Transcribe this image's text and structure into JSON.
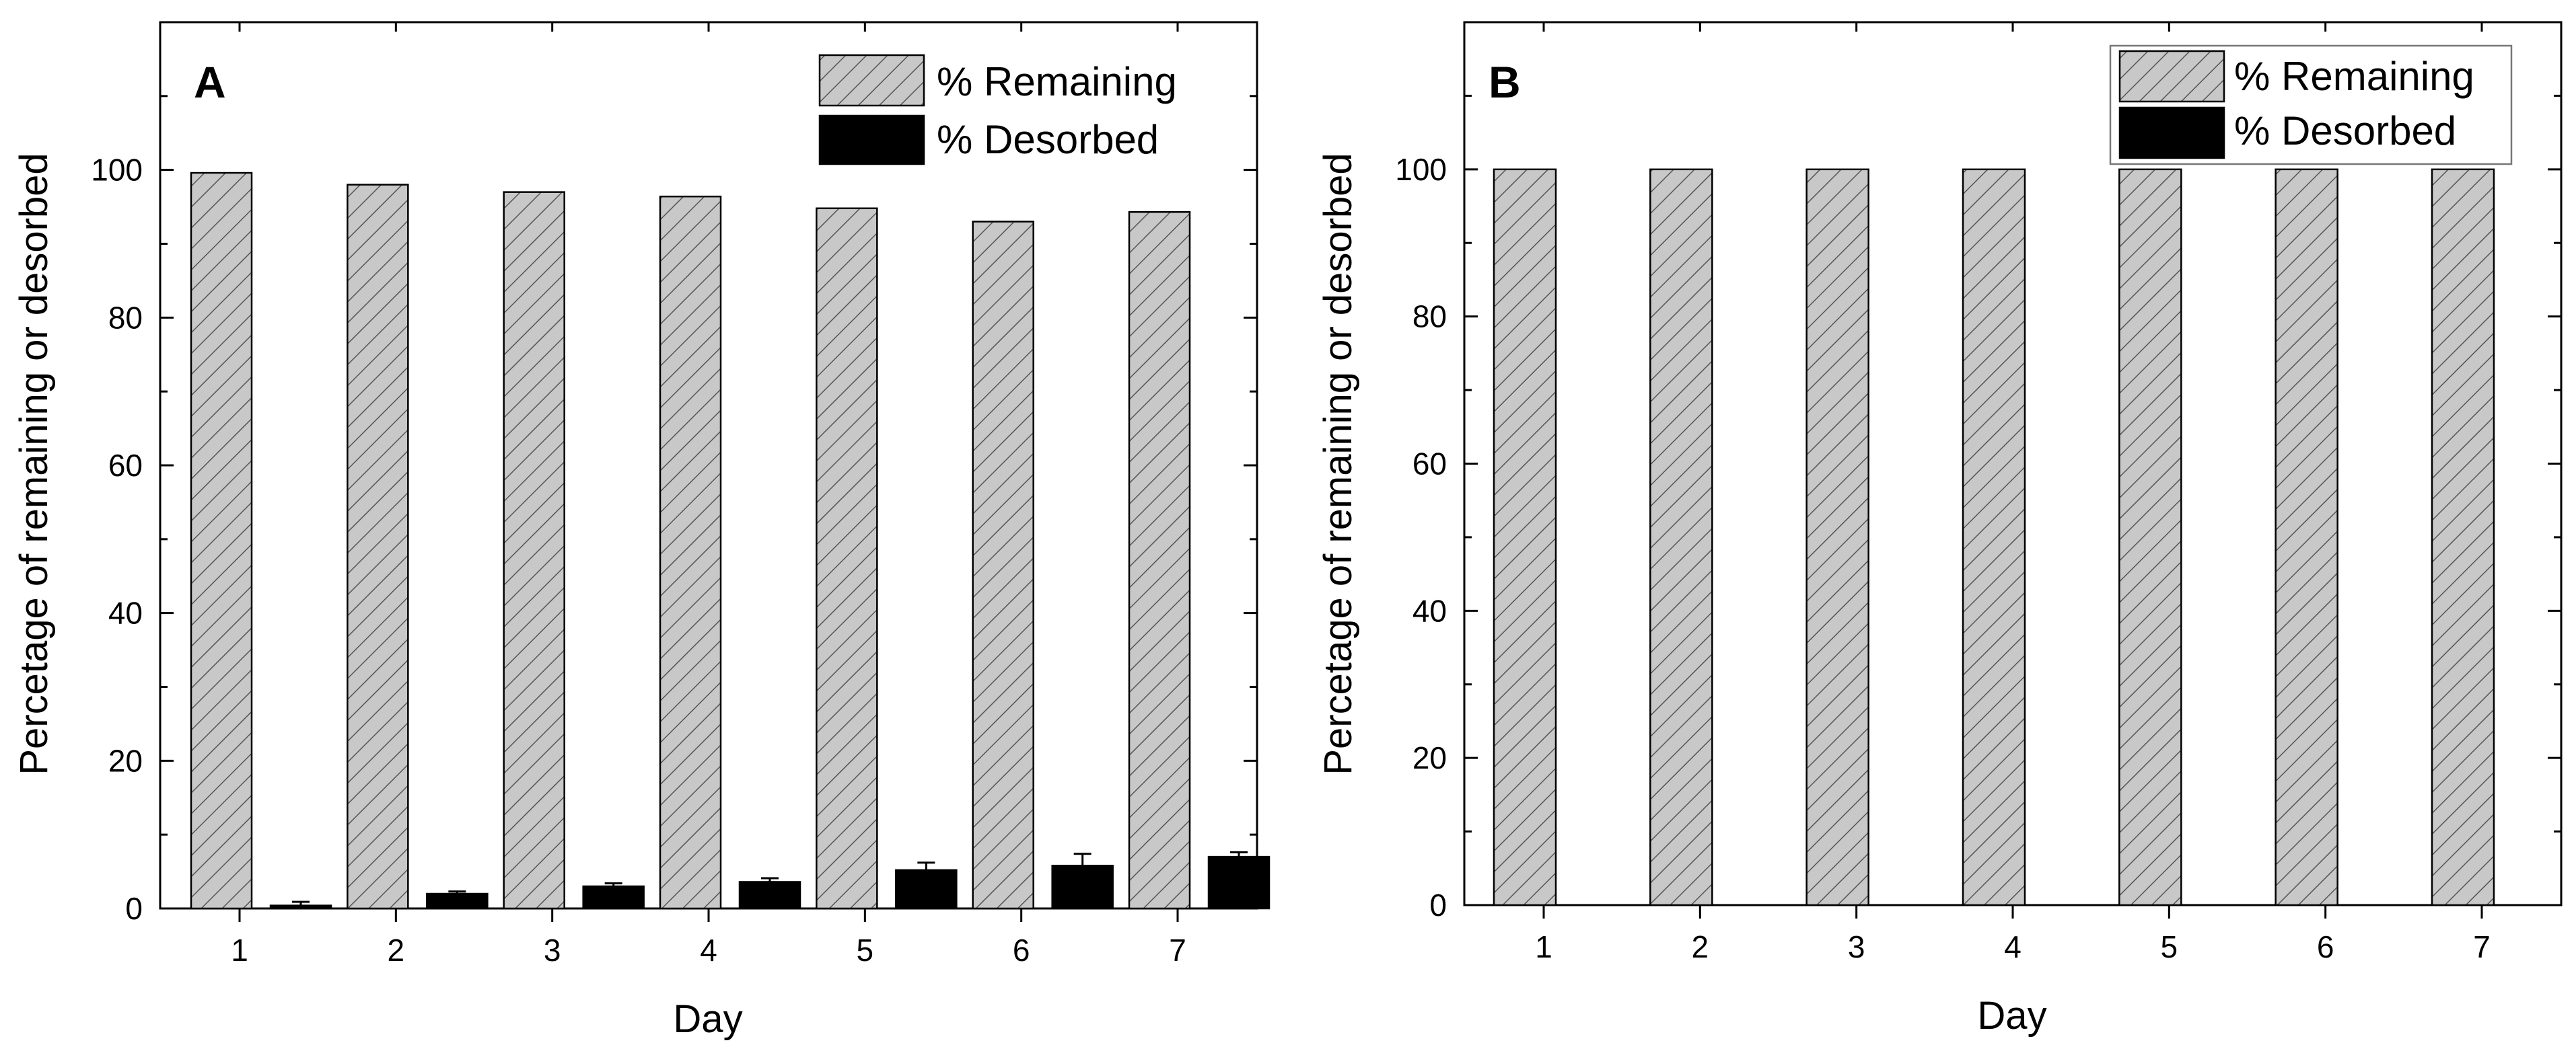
{
  "chart_data": [
    {
      "type": "bar",
      "panel_label": "A",
      "categories": [
        "1",
        "2",
        "3",
        "4",
        "5",
        "6",
        "7"
      ],
      "series": [
        {
          "name": "% Remaining",
          "values": [
            99.6,
            98.0,
            97.0,
            96.4,
            94.8,
            93.0,
            94.3
          ],
          "errors": [
            0,
            0,
            0,
            0,
            0,
            0,
            0
          ],
          "fill": "hatched-gray"
        },
        {
          "name": "% Desorbed",
          "values": [
            0.4,
            2.0,
            3.0,
            3.6,
            5.2,
            5.8,
            7.0
          ],
          "errors": [
            0.5,
            0.3,
            0.4,
            0.5,
            1.0,
            1.6,
            0.6
          ],
          "fill": "black"
        }
      ],
      "xlabel": "Day",
      "ylabel": "Percetage of remaining or desorbed",
      "ylim": [
        0,
        120
      ],
      "yticks": [
        "0",
        "20",
        "40",
        "60",
        "80",
        "100"
      ],
      "legend_position": "top-right"
    },
    {
      "type": "bar",
      "panel_label": "B",
      "categories": [
        "1",
        "2",
        "3",
        "4",
        "5",
        "6",
        "7"
      ],
      "series": [
        {
          "name": "% Remaining",
          "values": [
            100,
            100,
            100,
            100,
            100,
            100,
            100
          ],
          "errors": [
            0,
            0,
            0,
            0,
            0,
            0,
            0
          ],
          "fill": "hatched-gray"
        },
        {
          "name": "% Desorbed",
          "values": [
            0,
            0,
            0,
            0,
            0,
            0,
            0
          ],
          "errors": [
            0,
            0,
            0,
            0,
            0,
            0,
            0
          ],
          "fill": "black"
        }
      ],
      "xlabel": "Day",
      "ylabel": "Percetage of remaining or desorbed",
      "ylim": [
        0,
        120
      ],
      "yticks": [
        "0",
        "20",
        "40",
        "60",
        "80",
        "100"
      ],
      "legend_position": "top-right"
    }
  ],
  "colors": {
    "remaining_fill": "#c8c8c8",
    "hatch": "#555555",
    "desorbed_fill": "#000000"
  }
}
